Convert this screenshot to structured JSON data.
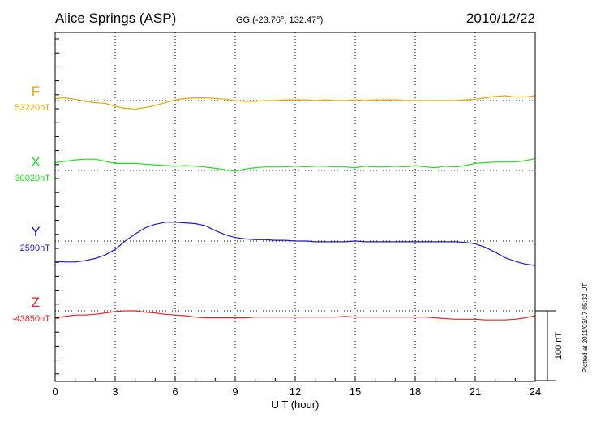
{
  "header": {
    "station": "Alice Springs (ASP)",
    "coords": "GG (-23.76°, 132.47°)",
    "date": "2010/12/22"
  },
  "footer": {
    "plotted": "Plotted at 2011/03/17 05:32 UT"
  },
  "chart_data": {
    "type": "line",
    "title": "Alice Springs (ASP)",
    "subtitle": "GG (-23.76°, 132.47°)",
    "xlabel": "U T (hour)",
    "xlim": [
      0,
      24
    ],
    "xticks": [
      "0",
      "3",
      "6",
      "9",
      "12",
      "15",
      "18",
      "21",
      "24"
    ],
    "grid": true,
    "scale_bar": {
      "label": "100 nT",
      "value_nT": 100
    },
    "series": [
      {
        "name": "F",
        "baseline_label": "53220nT",
        "baseline_nT": 53220,
        "color": "#e8a700",
        "x": [
          0,
          0.5,
          1,
          1.5,
          2,
          2.5,
          3,
          3.5,
          4,
          4.5,
          5,
          5.5,
          6,
          6.5,
          7,
          7.5,
          8,
          8.5,
          9,
          9.5,
          10,
          10.5,
          11,
          11.5,
          12,
          12.5,
          13,
          13.5,
          14,
          14.5,
          15,
          15.5,
          16,
          16.5,
          17,
          17.5,
          18,
          18.5,
          19,
          19.5,
          20,
          20.5,
          21,
          21.5,
          22,
          22.5,
          23,
          23.5,
          24
        ],
        "y": [
          53223,
          53224,
          53222,
          53219,
          53217,
          53216,
          53212,
          53209,
          53208,
          53210,
          53213,
          53217,
          53221,
          53223,
          53224,
          53224,
          53223,
          53222,
          53220,
          53219,
          53219,
          53220,
          53220,
          53221,
          53221,
          53221,
          53220,
          53221,
          53220,
          53220,
          53221,
          53220,
          53221,
          53221,
          53221,
          53220,
          53220,
          53220,
          53220,
          53220,
          53220,
          53221,
          53222,
          53224,
          53226,
          53227,
          53225,
          53225,
          53227
        ]
      },
      {
        "name": "X",
        "baseline_label": "30020nT",
        "baseline_nT": 30020,
        "color": "#22dd22",
        "x": [
          0,
          0.5,
          1,
          1.5,
          2,
          2.5,
          3,
          3.5,
          4,
          4.5,
          5,
          5.5,
          6,
          6.5,
          7,
          7.5,
          8,
          8.5,
          9,
          9.5,
          10,
          10.5,
          11,
          11.5,
          12,
          12.5,
          13,
          13.5,
          14,
          14.5,
          15,
          15.5,
          16,
          16.5,
          17,
          17.5,
          18,
          18.5,
          19,
          19.5,
          20,
          20.5,
          21,
          21.5,
          22,
          22.5,
          23,
          23.5,
          24
        ],
        "y": [
          30031,
          30033,
          30035,
          30036,
          30036,
          30033,
          30030,
          30030,
          30030,
          30029,
          30028,
          30027,
          30026,
          30027,
          30026,
          30025,
          30023,
          30021,
          30019,
          30022,
          30024,
          30025,
          30025,
          30025,
          30026,
          30025,
          30026,
          30026,
          30025,
          30025,
          30024,
          30026,
          30025,
          30025,
          30026,
          30025,
          30027,
          30025,
          30024,
          30026,
          30025,
          30027,
          30030,
          30031,
          30032,
          30032,
          30032,
          30034,
          30037
        ]
      },
      {
        "name": "Y",
        "baseline_label": "2590nT",
        "baseline_nT": 2590,
        "color": "#1a1acc",
        "x": [
          0,
          0.5,
          1,
          1.5,
          2,
          2.5,
          3,
          3.5,
          4,
          4.5,
          5,
          5.5,
          6,
          6.5,
          7,
          7.5,
          8,
          8.5,
          9,
          9.5,
          10,
          10.5,
          11,
          11.5,
          12,
          12.5,
          13,
          13.5,
          14,
          14.5,
          15,
          15.5,
          16,
          16.5,
          17,
          17.5,
          18,
          18.5,
          19,
          19.5,
          20,
          20.5,
          21,
          21.5,
          22,
          22.5,
          23,
          23.5,
          24
        ],
        "y": [
          2561,
          2560,
          2560,
          2562,
          2565,
          2570,
          2578,
          2590,
          2600,
          2609,
          2614,
          2617,
          2617,
          2616,
          2615,
          2612,
          2605,
          2599,
          2595,
          2593,
          2592,
          2592,
          2591,
          2591,
          2590,
          2590,
          2589,
          2589,
          2589,
          2589,
          2590,
          2589,
          2589,
          2589,
          2589,
          2589,
          2589,
          2589,
          2589,
          2589,
          2589,
          2588,
          2586,
          2581,
          2574,
          2566,
          2561,
          2557,
          2555
        ]
      },
      {
        "name": "Z",
        "baseline_label": "-43850nT",
        "baseline_nT": -43850,
        "color": "#ee2222",
        "x": [
          0,
          0.5,
          1,
          1.5,
          2,
          2.5,
          3,
          3.5,
          4,
          4.5,
          5,
          5.5,
          6,
          6.5,
          7,
          7.5,
          8,
          8.5,
          9,
          9.5,
          10,
          10.5,
          11,
          11.5,
          12,
          12.5,
          13,
          13.5,
          14,
          14.5,
          15,
          15.5,
          16,
          16.5,
          17,
          17.5,
          18,
          18.5,
          19,
          19.5,
          20,
          20.5,
          21,
          21.5,
          22,
          22.5,
          23,
          23.5,
          24
        ],
        "y": [
          -43860,
          -43858,
          -43856,
          -43856,
          -43855,
          -43853,
          -43851,
          -43850,
          -43850,
          -43852,
          -43853,
          -43855,
          -43856,
          -43857,
          -43859,
          -43860,
          -43860,
          -43860,
          -43860,
          -43860,
          -43859,
          -43859,
          -43859,
          -43859,
          -43859,
          -43859,
          -43859,
          -43859,
          -43859,
          -43858,
          -43859,
          -43859,
          -43859,
          -43859,
          -43859,
          -43859,
          -43859,
          -43859,
          -43860,
          -43861,
          -43862,
          -43862,
          -43862,
          -43863,
          -43863,
          -43863,
          -43862,
          -43860,
          -43857
        ]
      }
    ]
  }
}
